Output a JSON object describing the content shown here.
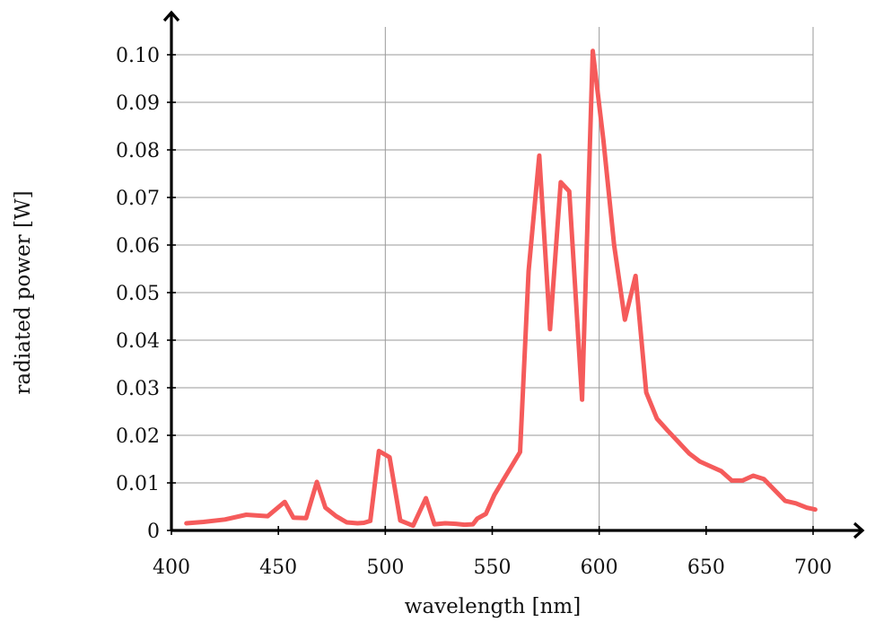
{
  "chart_data": {
    "type": "line",
    "xlabel": "wavelength [nm]",
    "ylabel": "radiated power [W]",
    "xlim": [
      400,
      720
    ],
    "ylim": [
      0,
      0.105
    ],
    "xticks": [
      400,
      450,
      500,
      550,
      600,
      650,
      700
    ],
    "yticks": [
      0,
      0.01,
      0.02,
      0.03,
      0.04,
      0.05,
      0.06,
      0.07,
      0.08,
      0.09,
      0.1
    ],
    "ytick_labels": [
      "0",
      "0.01",
      "0.02",
      "0.03",
      "0.04",
      "0.05",
      "0.06",
      "0.07",
      "0.08",
      "0.09",
      "0.10"
    ],
    "xgrid_at": [
      500,
      600,
      700
    ],
    "ygrid": true,
    "series": [
      {
        "color": "#f55b5b",
        "x": [
          407,
          415,
          425,
          435,
          445,
          453,
          457,
          463,
          468,
          472,
          477,
          482,
          487,
          490,
          493,
          497,
          502,
          507,
          513,
          519,
          523,
          528,
          533,
          537,
          541,
          543,
          547,
          551,
          555,
          559,
          563,
          567,
          572,
          577,
          582,
          586,
          592,
          597,
          602,
          607,
          612,
          617,
          622,
          627,
          632,
          637,
          642,
          647,
          652,
          657,
          662,
          667,
          672,
          677,
          682,
          687,
          692,
          697,
          701
        ],
        "y": [
          0.0015,
          0.0018,
          0.0023,
          0.0033,
          0.003,
          0.006,
          0.0027,
          0.0026,
          0.0102,
          0.0048,
          0.003,
          0.0017,
          0.0015,
          0.0016,
          0.002,
          0.0167,
          0.0154,
          0.0021,
          0.001,
          0.0068,
          0.0013,
          0.0015,
          0.0014,
          0.0012,
          0.0013,
          0.0025,
          0.0035,
          0.0075,
          0.0105,
          0.0135,
          0.0165,
          0.0545,
          0.0788,
          0.0423,
          0.0732,
          0.0713,
          0.0275,
          0.1008,
          0.082,
          0.06,
          0.0443,
          0.0535,
          0.029,
          0.0235,
          0.021,
          0.0186,
          0.0162,
          0.0145,
          0.0135,
          0.0125,
          0.0105,
          0.0105,
          0.0115,
          0.0108,
          0.0085,
          0.0062,
          0.0057,
          0.0048,
          0.0044
        ]
      }
    ]
  }
}
